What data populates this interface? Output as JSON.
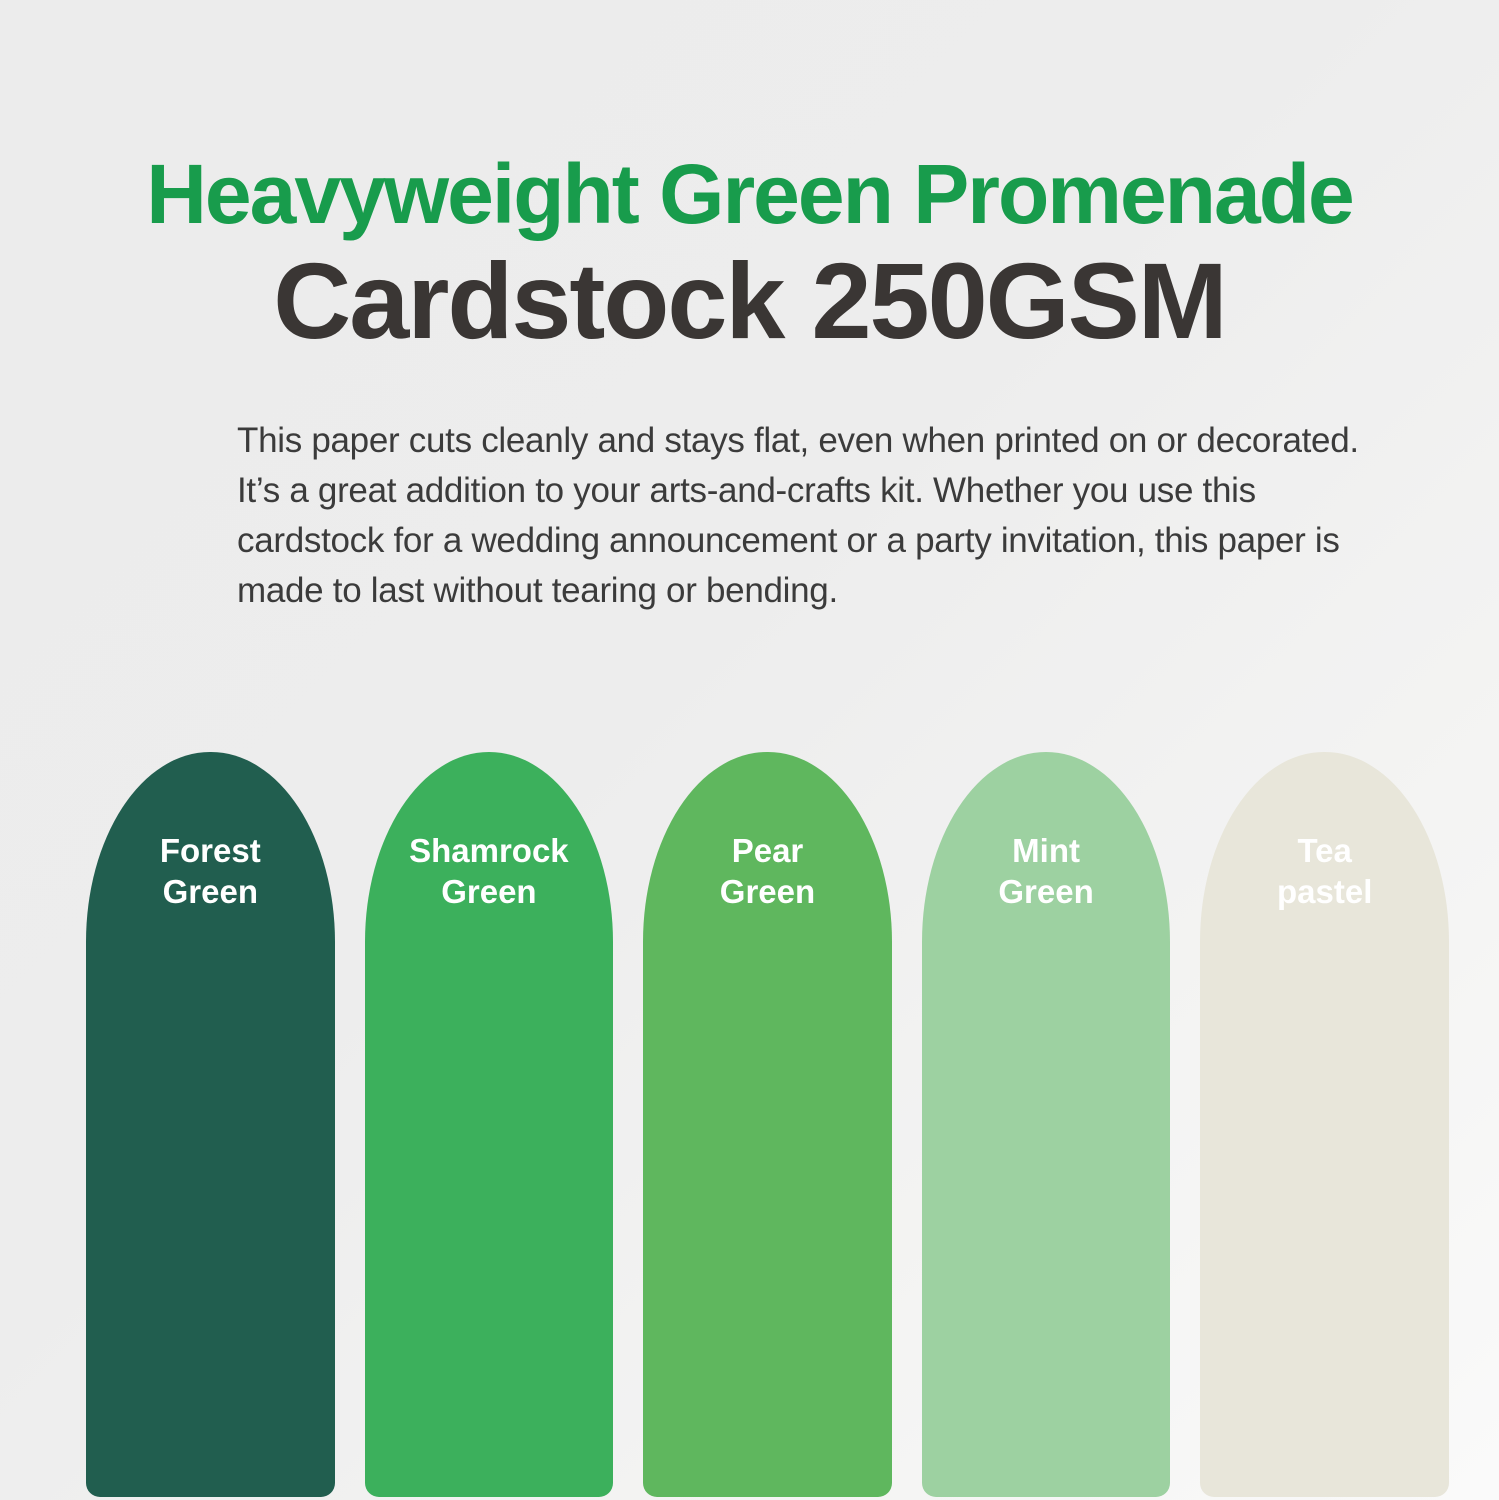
{
  "header": {
    "title_green": "Heavyweight Green Promenade",
    "title_dark": "Cardstock 250GSM"
  },
  "description": {
    "lines": [
      "This paper cuts cleanly and stays flat, even when printed on or decorated.",
      "It’s a great addition to your arts-and-crafts kit. Whether you use this",
      "cardstock for a wedding announcement or a party invitation, this paper is",
      "made to last without tearing or bending."
    ]
  },
  "colors": {
    "title_green": "#189C4C",
    "title_dark": "#3A3634",
    "body_text": "#3B3B3B",
    "swatch_label_text": "#FFFFFF",
    "background_top": "#ECECEC",
    "background_bottom": "#FAFAFA"
  },
  "swatches": [
    {
      "name": "Forest Green",
      "line1": "Forest",
      "line2": "Green",
      "color": "#215E4F"
    },
    {
      "name": "Shamrock Green",
      "line1": "Shamrock",
      "line2": "Green",
      "color": "#3CB05C"
    },
    {
      "name": "Pear Green",
      "line1": "Pear",
      "line2": "Green",
      "color": "#5FB75E"
    },
    {
      "name": "Mint Green",
      "line1": "Mint",
      "line2": "Green",
      "color": "#9DD1A1"
    },
    {
      "name": "Tea pastel",
      "line1": "Tea",
      "line2": "pastel",
      "color": "#E8E6DA"
    }
  ]
}
